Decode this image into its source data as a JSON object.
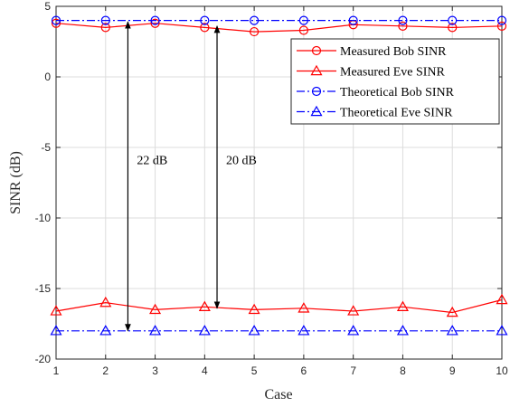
{
  "chart_data": {
    "type": "line",
    "xlabel": "Case",
    "ylabel": "SINR (dB)",
    "xlim": [
      1,
      10
    ],
    "ylim": [
      -20,
      5
    ],
    "xticks": [
      1,
      2,
      3,
      4,
      5,
      6,
      7,
      8,
      9,
      10
    ],
    "yticks": [
      5,
      0,
      -5,
      -10,
      -15,
      -20
    ],
    "grid": true,
    "legend_position": "top-right",
    "x": [
      1,
      2,
      3,
      4,
      5,
      6,
      7,
      8,
      9,
      10
    ],
    "series": [
      {
        "name": "Measured Bob SINR",
        "color": "#ff0000",
        "linestyle": "solid",
        "marker": "circle",
        "values": [
          3.8,
          3.5,
          3.8,
          3.5,
          3.2,
          3.3,
          3.7,
          3.6,
          3.5,
          3.6
        ]
      },
      {
        "name": "Measured Eve SINR",
        "color": "#ff0000",
        "linestyle": "solid",
        "marker": "triangle",
        "values": [
          -16.6,
          -16.0,
          -16.5,
          -16.3,
          -16.5,
          -16.4,
          -16.6,
          -16.3,
          -16.7,
          -15.8
        ]
      },
      {
        "name": "Theoretical Bob SINR",
        "color": "#0000ff",
        "linestyle": "dashdot",
        "marker": "circle",
        "values": [
          4.0,
          4.0,
          4.0,
          4.0,
          4.0,
          4.0,
          4.0,
          4.0,
          4.0,
          4.0
        ]
      },
      {
        "name": "Theoretical Eve SINR",
        "color": "#0000ff",
        "linestyle": "dashdot",
        "marker": "triangle",
        "values": [
          -18.0,
          -18.0,
          -18.0,
          -18.0,
          -18.0,
          -18.0,
          -18.0,
          -18.0,
          -18.0,
          -18.0
        ]
      }
    ],
    "annotations": [
      {
        "text": "22 dB",
        "x": 2.45,
        "y_from": 3.9,
        "y_to": -18.0
      },
      {
        "text": "20 dB",
        "x": 4.25,
        "y_from": 3.6,
        "y_to": -16.4
      }
    ]
  }
}
